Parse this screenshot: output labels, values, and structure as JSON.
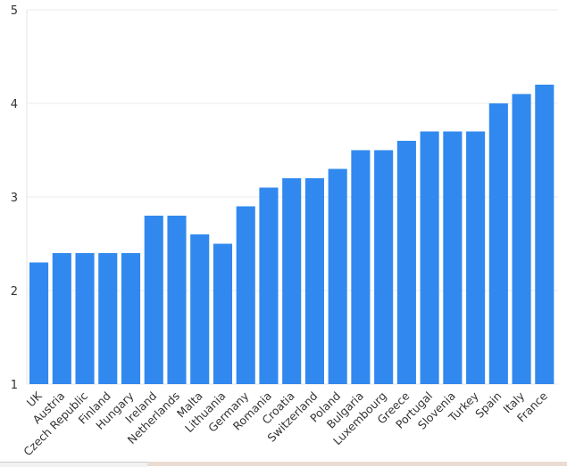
{
  "chart_data": {
    "type": "bar",
    "title": "",
    "xlabel": "",
    "ylabel": "",
    "ylim": [
      1,
      5
    ],
    "yticks": [
      1,
      2,
      3,
      4,
      5
    ],
    "grid": true,
    "bar_color": "#3189ef",
    "categories": [
      "UK",
      "Austria",
      "Czech Republic",
      "Finland",
      "Hungary",
      "Ireland",
      "Netherlands",
      "Malta",
      "Lithuania",
      "Germany",
      "Romania",
      "Croatia",
      "Switzerland",
      "Poland",
      "Bulgaria",
      "Luxembourg",
      "Greece",
      "Portugal",
      "Slovenia",
      "Turkey",
      "Spain",
      "Italy",
      "France"
    ],
    "values": [
      2.3,
      2.4,
      2.4,
      2.4,
      2.4,
      2.8,
      2.8,
      2.6,
      2.5,
      2.9,
      3.1,
      3.2,
      3.2,
      3.3,
      3.5,
      3.5,
      3.6,
      3.7,
      3.7,
      3.7,
      4.0,
      4.1,
      4.2
    ]
  }
}
